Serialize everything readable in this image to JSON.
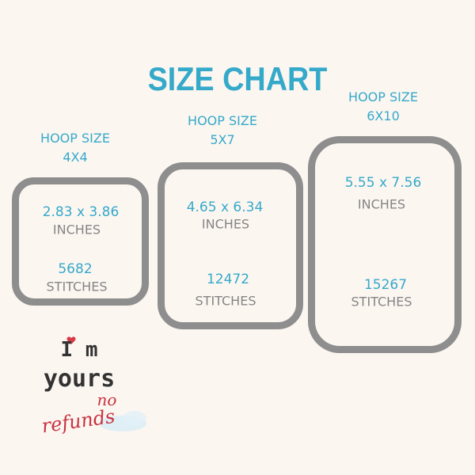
{
  "title": "SIZE CHART",
  "hoops": [
    {
      "label": "HOOP SIZE",
      "size": "4X4",
      "dimensions": "2.83 x 3.86",
      "dim_unit": "INCHES",
      "stitches": "5682",
      "stitch_unit": "STITCHES"
    },
    {
      "label": "HOOP SIZE",
      "size": "5X7",
      "dimensions": "4.65 x 6.34",
      "dim_unit": "INCHES",
      "stitches": "12472",
      "stitch_unit": "STITCHES"
    },
    {
      "label": "HOOP SIZE",
      "size": "6X10",
      "dimensions": "5.55 x 7.56",
      "dim_unit": "INCHES",
      "stitches": "15267",
      "stitch_unit": "STITCHES"
    }
  ],
  "design": {
    "line1": "I m",
    "line2": "yours",
    "line3": "no",
    "line4": "refunds"
  },
  "colors": {
    "accent": "#35a9ca",
    "frame": "#8e8e8e",
    "text_gray": "#858585",
    "background": "#fcf6f1",
    "heart": "#d63a44",
    "script_red": "#c8323f"
  }
}
